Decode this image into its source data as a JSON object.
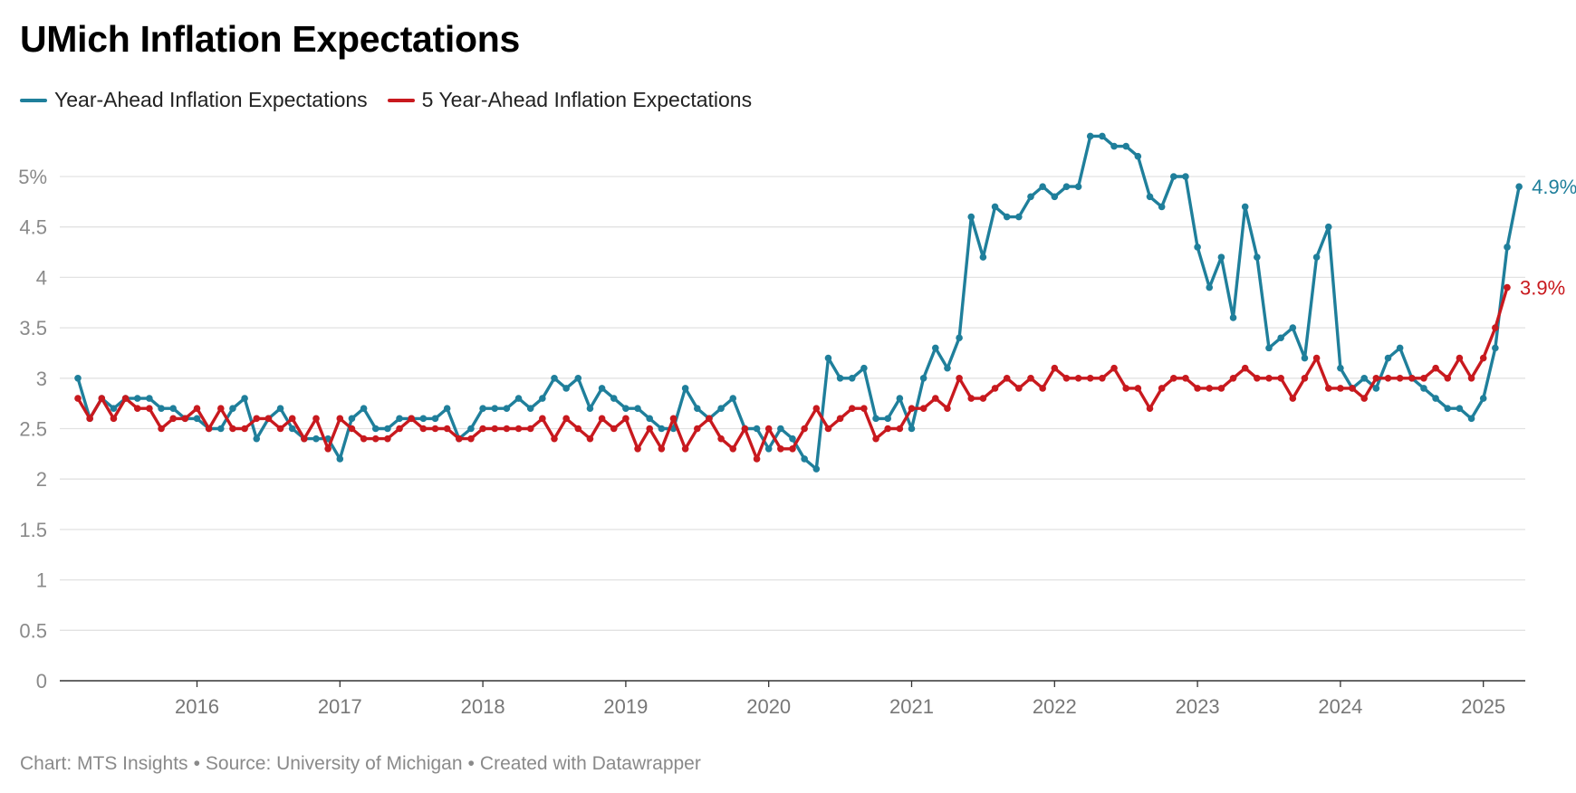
{
  "header": {
    "title": "UMich Inflation Expectations"
  },
  "legend": [
    {
      "label": "Year-Ahead Inflation Expectations",
      "color": "#1f7f9b"
    },
    {
      "label": "5 Year-Ahead Inflation Expectations",
      "color": "#c8191e"
    }
  ],
  "footer": {
    "chart": "Chart: MTS Insights",
    "source": "Source: University of Michigan",
    "created": "Created with Datawrapper",
    "separator": "•"
  },
  "chart_data": {
    "type": "line",
    "title": "UMich Inflation Expectations",
    "xlabel": "",
    "ylabel": "",
    "ylim": [
      0,
      5.5
    ],
    "y_ticks": [
      0,
      0.5,
      1,
      1.5,
      2,
      2.5,
      3,
      3.5,
      4,
      4.5,
      5
    ],
    "y_tick_labels": [
      "0",
      "0.5",
      "1",
      "1.5",
      "2",
      "2.5",
      "3",
      "3.5",
      "4",
      "4.5",
      "5%"
    ],
    "x_ticks": [
      2016,
      2017,
      2018,
      2019,
      2020,
      2021,
      2022,
      2023,
      2024,
      2025
    ],
    "x_tick_labels": [
      "2016",
      "2017",
      "2018",
      "2019",
      "2020",
      "2021",
      "2022",
      "2023",
      "2024",
      "2025"
    ],
    "x_start": "2015-03",
    "x_step": "monthly",
    "grid": true,
    "series": [
      {
        "name": "Year-Ahead Inflation Expectations",
        "color": "#1f7f9b",
        "end_label": "4.9%",
        "values": [
          3.0,
          2.6,
          2.8,
          2.7,
          2.8,
          2.8,
          2.8,
          2.7,
          2.7,
          2.6,
          2.6,
          2.5,
          2.5,
          2.7,
          2.8,
          2.4,
          2.6,
          2.7,
          2.5,
          2.4,
          2.4,
          2.4,
          2.2,
          2.6,
          2.7,
          2.5,
          2.5,
          2.6,
          2.6,
          2.6,
          2.6,
          2.7,
          2.4,
          2.5,
          2.7,
          2.7,
          2.7,
          2.8,
          2.7,
          2.8,
          3.0,
          2.9,
          3.0,
          2.7,
          2.9,
          2.8,
          2.7,
          2.7,
          2.6,
          2.5,
          2.5,
          2.9,
          2.7,
          2.6,
          2.7,
          2.8,
          2.5,
          2.5,
          2.3,
          2.5,
          2.4,
          2.2,
          2.1,
          3.2,
          3.0,
          3.0,
          3.1,
          2.6,
          2.6,
          2.8,
          2.5,
          3.0,
          3.3,
          3.1,
          3.4,
          4.6,
          4.2,
          4.7,
          4.6,
          4.6,
          4.8,
          4.9,
          4.8,
          4.9,
          4.9,
          5.4,
          5.4,
          5.3,
          5.3,
          5.2,
          4.8,
          4.7,
          5.0,
          5.0,
          4.3,
          3.9,
          4.2,
          3.6,
          4.7,
          4.2,
          3.3,
          3.4,
          3.5,
          3.2,
          4.2,
          4.5,
          3.1,
          2.9,
          3.0,
          2.9,
          3.2,
          3.3,
          3.0,
          2.9,
          2.8,
          2.7,
          2.7,
          2.6,
          2.8,
          3.3,
          4.3,
          4.9
        ]
      },
      {
        "name": "5 Year-Ahead Inflation Expectations",
        "color": "#c8191e",
        "end_label": "3.9%",
        "values": [
          2.8,
          2.6,
          2.8,
          2.6,
          2.8,
          2.7,
          2.7,
          2.5,
          2.6,
          2.6,
          2.7,
          2.5,
          2.7,
          2.5,
          2.5,
          2.6,
          2.6,
          2.5,
          2.6,
          2.4,
          2.6,
          2.3,
          2.6,
          2.5,
          2.4,
          2.4,
          2.4,
          2.5,
          2.6,
          2.5,
          2.5,
          2.5,
          2.4,
          2.4,
          2.5,
          2.5,
          2.5,
          2.5,
          2.5,
          2.6,
          2.4,
          2.6,
          2.5,
          2.4,
          2.6,
          2.5,
          2.6,
          2.3,
          2.5,
          2.3,
          2.6,
          2.3,
          2.5,
          2.6,
          2.4,
          2.3,
          2.5,
          2.2,
          2.5,
          2.3,
          2.3,
          2.5,
          2.7,
          2.5,
          2.6,
          2.7,
          2.7,
          2.4,
          2.5,
          2.5,
          2.7,
          2.7,
          2.8,
          2.7,
          3.0,
          2.8,
          2.8,
          2.9,
          3.0,
          2.9,
          3.0,
          2.9,
          3.1,
          3.0,
          3.0,
          3.0,
          3.0,
          3.1,
          2.9,
          2.9,
          2.7,
          2.9,
          3.0,
          3.0,
          2.9,
          2.9,
          2.9,
          3.0,
          3.1,
          3.0,
          3.0,
          3.0,
          2.8,
          3.0,
          3.2,
          2.9,
          2.9,
          2.9,
          2.8,
          3.0,
          3.0,
          3.0,
          3.0,
          3.0,
          3.1,
          3.0,
          3.2,
          3.0,
          3.2,
          3.5,
          3.9
        ]
      }
    ]
  }
}
